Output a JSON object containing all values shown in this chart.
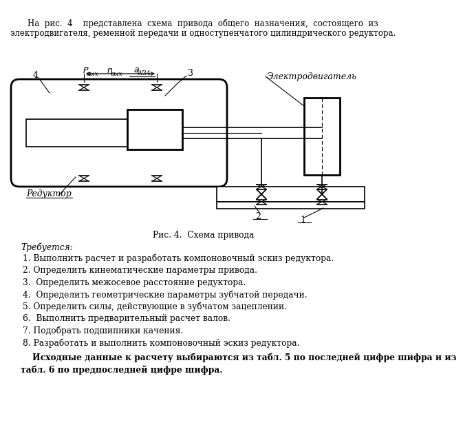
{
  "title_line1": "На  рис.  4    представлена  схема  привода  общего  назначения,  состоящего  из",
  "title_line2": "электродвигателя, ременной передачи и одноступенчатого цилиндрического редуктора.",
  "fig_caption": "Рис. 4.  Схема привода",
  "label_trebuetsya": "Требуется:",
  "items": [
    "1. Выполнить расчет и разработать компоновочный эскиз редуктора.",
    "2. Определить кинематические параметры привода.",
    "3.  Определить межосевое расстояние редуктора.",
    "4.  Определить геометрические параметры зубчатой передачи.",
    "5. Определить силы, действующие в зубчатом зацеплении.",
    "6.  Выполнить предварительный расчет валов.",
    "7. Подобрать подшипники качения.",
    "8. Разработать и выполнить компоновочный эскиз редуктора."
  ],
  "bold_line1": "    Исходные данные к расчету выбираются из табл. 5 по последней цифре шифра и из",
  "bold_line2": "табл. 6 по предпоследней цифре шифра.",
  "bg_color": "#ffffff",
  "line_color": "#000000",
  "text_color": "#000000",
  "label4": "4",
  "label3": "3",
  "label1": "1",
  "label2": "2",
  "label_reduktor": "Редуктор",
  "label_elektro": "Электродвигатель",
  "label_p": "P",
  "label_pvyh_sub": "вых",
  "label_n": "n",
  "label_nvyh_sub": "вых",
  "label_aw": "a",
  "label_aw_sub": "W34"
}
